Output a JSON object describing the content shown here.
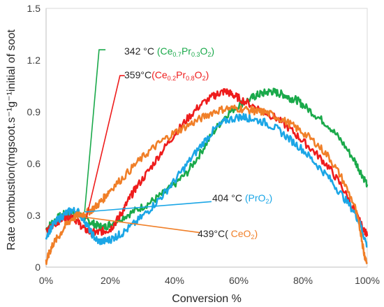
{
  "chart_data": {
    "type": "line",
    "xlabel": "Conversion %",
    "ylabel": "Rate combustion(mgsoot.s⁻¹g⁻¹initial of soot",
    "xlim": [
      0,
      100
    ],
    "ylim": [
      0,
      1.5
    ],
    "x_ticks": [
      "0%",
      "20%",
      "40%",
      "60%",
      "80%",
      "100%"
    ],
    "y_ticks": [
      "0",
      "0.3",
      "0.6",
      "0.9",
      "1.2",
      "1.5"
    ],
    "grid": false,
    "series": [
      {
        "id": "s_ce07",
        "color": "#1aa94a",
        "x": [
          0,
          2,
          4,
          6,
          8,
          10,
          12,
          14,
          16,
          18,
          20,
          24,
          28,
          32,
          36,
          40,
          44,
          48,
          52,
          56,
          60,
          64,
          66,
          68,
          70,
          72,
          74,
          76,
          78,
          80,
          84,
          88,
          92,
          96,
          98,
          100
        ],
        "y": [
          0.22,
          0.26,
          0.29,
          0.31,
          0.32,
          0.31,
          0.28,
          0.26,
          0.24,
          0.23,
          0.25,
          0.29,
          0.33,
          0.37,
          0.42,
          0.48,
          0.55,
          0.66,
          0.78,
          0.88,
          0.94,
          0.98,
          1.0,
          1.01,
          1.02,
          1.01,
          1.0,
          0.98,
          0.97,
          0.94,
          0.88,
          0.82,
          0.73,
          0.62,
          0.55,
          0.48
        ]
      },
      {
        "id": "s_ce02",
        "color": "#ee1c1c",
        "x": [
          0,
          2,
          4,
          6,
          8,
          10,
          12,
          14,
          16,
          18,
          20,
          22,
          24,
          26,
          28,
          32,
          36,
          40,
          44,
          48,
          52,
          54,
          56,
          58,
          60,
          64,
          68,
          72,
          76,
          80,
          84,
          88,
          92,
          96,
          98,
          100
        ],
        "y": [
          0.2,
          0.24,
          0.27,
          0.29,
          0.3,
          0.26,
          0.22,
          0.2,
          0.2,
          0.21,
          0.22,
          0.27,
          0.33,
          0.4,
          0.46,
          0.56,
          0.67,
          0.77,
          0.86,
          0.94,
          0.99,
          1.01,
          1.02,
          1.0,
          0.98,
          0.94,
          0.9,
          0.86,
          0.8,
          0.73,
          0.66,
          0.58,
          0.47,
          0.33,
          0.25,
          0.18
        ]
      },
      {
        "id": "s_pr",
        "color": "#1ba6e6",
        "x": [
          0,
          2,
          4,
          6,
          8,
          10,
          12,
          14,
          16,
          18,
          20,
          22,
          24,
          28,
          32,
          36,
          40,
          44,
          48,
          52,
          56,
          60,
          62,
          64,
          68,
          72,
          76,
          80,
          84,
          88,
          92,
          96,
          98,
          100
        ],
        "y": [
          0.18,
          0.24,
          0.28,
          0.31,
          0.33,
          0.32,
          0.27,
          0.2,
          0.15,
          0.15,
          0.16,
          0.18,
          0.2,
          0.26,
          0.33,
          0.41,
          0.5,
          0.6,
          0.7,
          0.79,
          0.85,
          0.87,
          0.87,
          0.86,
          0.84,
          0.8,
          0.74,
          0.68,
          0.6,
          0.52,
          0.42,
          0.32,
          0.24,
          0.12
        ]
      },
      {
        "id": "s_ceo2",
        "color": "#f07f28",
        "x": [
          0,
          1,
          2,
          4,
          6,
          8,
          10,
          12,
          14,
          16,
          18,
          20,
          24,
          28,
          32,
          36,
          40,
          44,
          48,
          52,
          56,
          60,
          64,
          66,
          68,
          72,
          76,
          80,
          84,
          88,
          92,
          96,
          98,
          99,
          100
        ],
        "y": [
          0.03,
          0.08,
          0.13,
          0.18,
          0.24,
          0.28,
          0.3,
          0.31,
          0.33,
          0.36,
          0.4,
          0.45,
          0.52,
          0.6,
          0.67,
          0.73,
          0.78,
          0.82,
          0.86,
          0.9,
          0.92,
          0.92,
          0.91,
          0.9,
          0.9,
          0.87,
          0.83,
          0.78,
          0.72,
          0.64,
          0.52,
          0.36,
          0.2,
          0.08,
          0.02
        ]
      }
    ],
    "annotations": [
      {
        "parts": [
          {
            "t": "342 °C ",
            "c": "#262626"
          },
          {
            "t": "(Ce",
            "c": "#1aa94a"
          },
          {
            "t": "0.7",
            "c": "#1aa94a",
            "sub": true
          },
          {
            "t": "Pr",
            "c": "#1aa94a"
          },
          {
            "t": "0.3",
            "c": "#1aa94a",
            "sub": true
          },
          {
            "t": "O",
            "c": "#1aa94a"
          },
          {
            "t": "2",
            "c": "#1aa94a",
            "sub": true
          },
          {
            "t": ")",
            "c": "#1aa94a"
          }
        ],
        "color": "#1aa94a",
        "line_from": [
          12,
          0.32
        ],
        "line_to": [
          16.5,
          1.26
        ],
        "line_end": [
          18.5,
          1.26
        ]
      },
      {
        "parts": [
          {
            "t": "359°C",
            "c": "#262626"
          },
          {
            "t": "(Ce",
            "c": "#ee1c1c"
          },
          {
            "t": "0.2",
            "c": "#ee1c1c",
            "sub": true
          },
          {
            "t": "Pr",
            "c": "#ee1c1c"
          },
          {
            "t": "0.8",
            "c": "#ee1c1c",
            "sub": true
          },
          {
            "t": "O",
            "c": "#ee1c1c"
          },
          {
            "t": "2",
            "c": "#ee1c1c",
            "sub": true
          },
          {
            "t": ")",
            "c": "#ee1c1c"
          }
        ],
        "color": "#ee1c1c",
        "line_from": [
          12.5,
          0.28
        ],
        "line_to": [
          23,
          1.11
        ],
        "line_end": [
          24.5,
          1.11
        ]
      },
      {
        "parts": [
          {
            "t": "404 °C ",
            "c": "#262626"
          },
          {
            "t": "(PrO",
            "c": "#1ba6e6"
          },
          {
            "t": "2",
            "c": "#1ba6e6",
            "sub": true
          },
          {
            "t": ")",
            "c": "#1ba6e6"
          }
        ],
        "color": "#1ba6e6",
        "line_from": [
          12,
          0.32
        ],
        "line_to": [
          51.5,
          0.38
        ]
      },
      {
        "parts": [
          {
            "t": "439°C(",
            "c": "#262626"
          },
          {
            "t": " CeO",
            "c": "#f07f28"
          },
          {
            "t": "2",
            "c": "#f07f28",
            "sub": true
          },
          {
            "t": ")",
            "c": "#f07f28"
          }
        ],
        "color": "#f07f28",
        "line_from": [
          12,
          0.29
        ],
        "line_to": [
          48,
          0.2
        ]
      }
    ]
  }
}
